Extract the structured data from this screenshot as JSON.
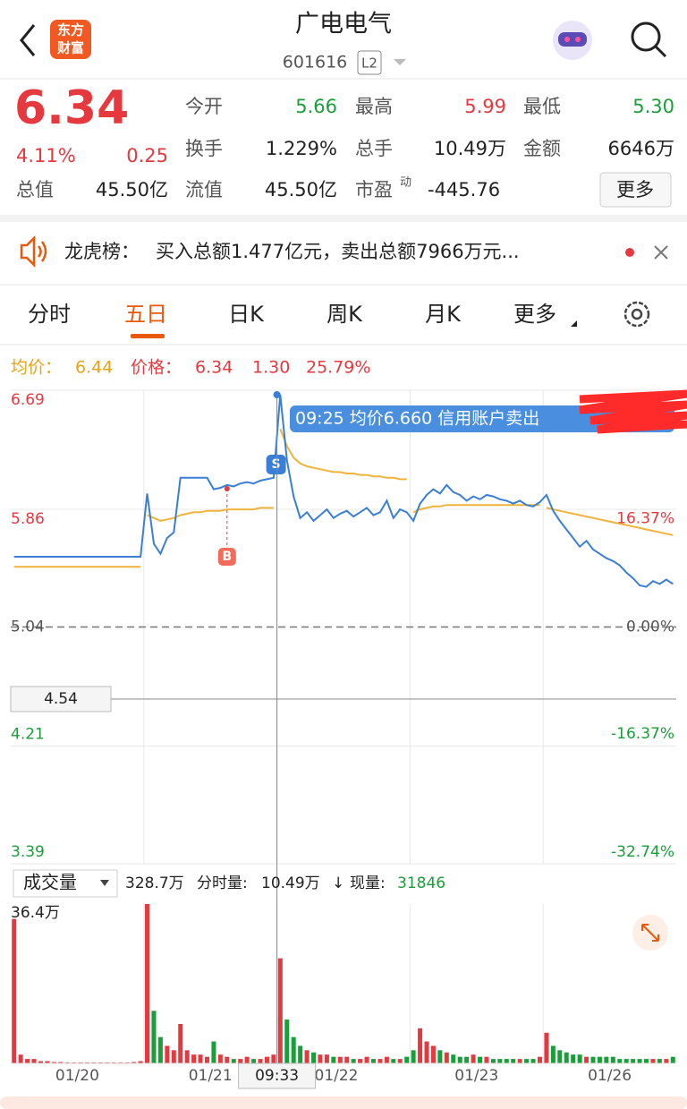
{
  "header": {
    "title": "广电电气",
    "code": "601616",
    "level": "L2",
    "logo": [
      "东方",
      "财富"
    ]
  },
  "quote": {
    "price": "6.34",
    "change_pct": "4.11%",
    "change": "0.25",
    "fields": [
      {
        "label": "今开",
        "value": "5.66"
      },
      {
        "label": "最高",
        "value": "5.99"
      },
      {
        "label": "最低",
        "value": "5.30"
      },
      {
        "label": "换手",
        "value": "1.229%"
      },
      {
        "label": "总手",
        "value": "10.49万"
      },
      {
        "label": "金额",
        "value": "6646万"
      },
      {
        "label": "总值",
        "value": "45.50亿"
      },
      {
        "label": "流值",
        "value": "45.50亿"
      },
      {
        "label": "市盈",
        "sup": "动",
        "value": "-445.76"
      }
    ],
    "more": "更多"
  },
  "notice": {
    "label": "龙虎榜：",
    "text": "买入总额1.477亿元，卖出总额7966万元..."
  },
  "tabs": [
    "分时",
    "五日",
    "日K",
    "周K",
    "月K",
    "更多"
  ],
  "info": {
    "avg_label": "均价：",
    "avg": "6.44",
    "price_label": "价格：",
    "price": "6.34",
    "change": "1.30",
    "change_pct": "25.79%"
  },
  "chart": {
    "ylim": [
      3.39,
      6.69
    ],
    "yticks": [
      6.69,
      5.86,
      5.04,
      4.21,
      3.39
    ],
    "y2lim": [
      -32.74,
      32.74
    ],
    "y2ticks": [
      {
        "value": 16.37,
        "label": "16.37%"
      },
      {
        "value": 0,
        "label": "0.00%"
      },
      {
        "value": -16.37,
        "label": "-16.37%"
      },
      {
        "value": -32.74,
        "label": "-32.74%"
      }
    ],
    "dates": [
      "01/20",
      "01/21",
      "01/22",
      "01/23",
      "01/26"
    ],
    "cursor_time": "09:33",
    "cursor_price": "4.54",
    "tooltip": "09:25 均价6.660 信用账户卖出",
    "markers": [
      "S",
      "B"
    ],
    "price": {
      "color": "#3a7fd5",
      "values": [
        5.53,
        5.53,
        5.53,
        5.53,
        5.53,
        5.53,
        5.53,
        5.53,
        5.53,
        5.53,
        5.53,
        5.53,
        5.53,
        5.53,
        5.53,
        5.53,
        5.53,
        5.53,
        5.53,
        5.53,
        5.97,
        5.62,
        5.55,
        5.66,
        5.7,
        6.08,
        6.08,
        6.08,
        6.08,
        6.08,
        6.0,
        6.01,
        6.03,
        6.02,
        6.04,
        6.05,
        6.04,
        6.06,
        6.07,
        6.08,
        6.66,
        6.2,
        5.95,
        5.8,
        5.84,
        5.78,
        5.82,
        5.86,
        5.8,
        5.83,
        5.85,
        5.81,
        5.84,
        5.87,
        5.82,
        5.84,
        5.92,
        5.8,
        5.86,
        5.84,
        5.78,
        5.9,
        5.96,
        6.0,
        5.97,
        6.03,
        5.98,
        5.96,
        5.92,
        5.95,
        5.93,
        5.96,
        5.95,
        5.93,
        5.92,
        5.9,
        5.92,
        5.89,
        5.88,
        5.91,
        5.96,
        5.85,
        5.78,
        5.72,
        5.66,
        5.6,
        5.64,
        5.58,
        5.55,
        5.52,
        5.5,
        5.47,
        5.42,
        5.38,
        5.33,
        5.32,
        5.36,
        5.34,
        5.37,
        5.34
      ]
    },
    "average": {
      "color": "#f0b43c",
      "values": [
        5.46,
        5.46,
        5.46,
        5.46,
        5.46,
        5.46,
        5.46,
        5.46,
        5.46,
        5.46,
        5.46,
        5.46,
        5.46,
        5.46,
        5.46,
        5.46,
        5.46,
        5.46,
        5.46,
        5.46,
        5.82,
        5.8,
        5.78,
        5.79,
        5.8,
        5.82,
        5.83,
        5.84,
        5.84,
        5.85,
        5.85,
        5.85,
        5.86,
        5.86,
        5.86,
        5.86,
        5.86,
        5.87,
        5.87,
        5.87,
        6.42,
        6.3,
        6.22,
        6.18,
        6.16,
        6.15,
        6.14,
        6.13,
        6.12,
        6.12,
        6.11,
        6.11,
        6.1,
        6.1,
        6.09,
        6.09,
        6.08,
        6.08,
        6.07,
        6.07,
        5.84,
        5.86,
        5.87,
        5.88,
        5.88,
        5.89,
        5.89,
        5.89,
        5.89,
        5.89,
        5.89,
        5.89,
        5.89,
        5.89,
        5.89,
        5.89,
        5.89,
        5.89,
        5.89,
        5.89,
        5.87,
        5.86,
        5.85,
        5.84,
        5.83,
        5.82,
        5.81,
        5.8,
        5.79,
        5.78,
        5.77,
        5.76,
        5.75,
        5.74,
        5.73,
        5.72,
        5.71,
        5.7,
        5.69,
        5.68
      ]
    },
    "volume": {
      "label": "成交量",
      "total": "328.7万",
      "period_label": "分时量:",
      "period": "10.49万",
      "arrow": "↓",
      "now_label": "现量:",
      "now": "31846",
      "ylim": [
        0,
        36.4
      ],
      "yticks": [
        {
          "value": 36.4,
          "label": "36.4万"
        }
      ],
      "up_color": "#e6393f",
      "down_color": "#1a9e3a",
      "values": [
        33,
        2,
        1,
        1,
        0.5,
        0.5,
        0.3,
        0.3,
        0.2,
        0.2,
        0.2,
        0.2,
        0.2,
        0.2,
        0.2,
        0.2,
        0.2,
        0.2,
        0.3,
        0.5,
        36.4,
        12,
        6,
        4,
        3,
        9,
        3,
        2,
        2,
        1.5,
        5,
        2,
        1.5,
        1,
        1,
        1.5,
        1,
        1,
        1.5,
        2,
        24,
        10,
        6,
        4,
        3,
        2.5,
        2,
        2,
        1.5,
        1.5,
        1.5,
        1,
        1,
        1.5,
        1,
        1,
        1.5,
        1,
        1,
        1.5,
        3,
        8,
        5,
        4,
        3,
        2.5,
        2,
        1.5,
        1.5,
        2,
        1.5,
        1.5,
        1,
        1,
        1,
        1,
        1,
        1,
        1,
        1.5,
        7,
        4,
        3,
        2.5,
        2,
        2,
        1.5,
        1.5,
        1.5,
        1.5,
        1.5,
        1,
        1,
        1,
        1,
        1,
        1,
        1,
        1,
        1.5
      ]
    }
  }
}
